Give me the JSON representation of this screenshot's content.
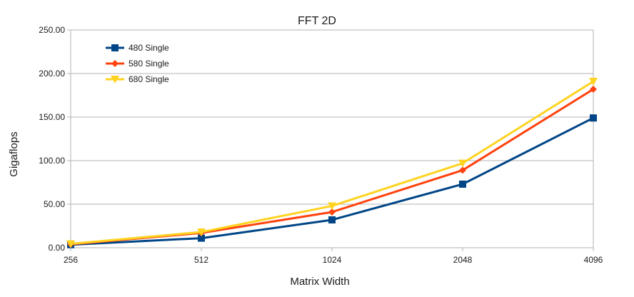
{
  "chart_data": {
    "type": "line",
    "title": "FFT 2D",
    "xlabel": "Matrix Width",
    "ylabel": "Gigaflops",
    "categories": [
      "256",
      "512",
      "1024",
      "2048",
      "4096"
    ],
    "ylim": [
      0,
      250
    ],
    "yticks": [
      "0.00",
      "50.00",
      "100.00",
      "150.00",
      "200.00",
      "250.00"
    ],
    "grid": true,
    "legend_position": "top-left",
    "series": [
      {
        "name": "480 Single",
        "color": "#004586",
        "marker": "square",
        "values": [
          3.5,
          11,
          32,
          73,
          149
        ]
      },
      {
        "name": "580 Single",
        "color": "#ff420e",
        "marker": "diamond",
        "values": [
          4,
          17,
          41,
          89,
          182
        ]
      },
      {
        "name": "680 Single",
        "color": "#ffd320",
        "marker": "triangle-down",
        "values": [
          4.5,
          18,
          48,
          97,
          191
        ]
      }
    ]
  }
}
